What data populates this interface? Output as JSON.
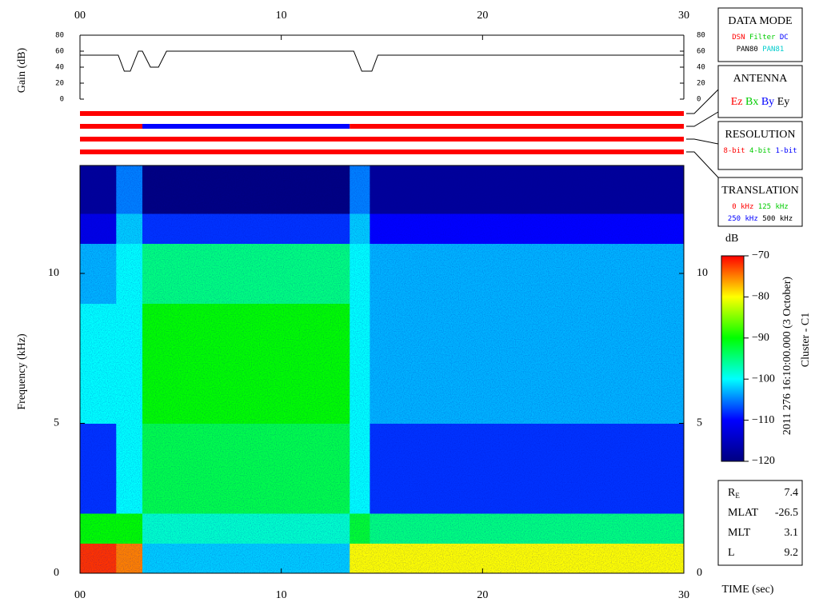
{
  "chart_data": [
    {
      "type": "line",
      "ylabel": "Gain (dB)",
      "color": "#000000",
      "x": [
        0,
        1.9,
        2.2,
        2.5,
        2.9,
        3.1,
        3.5,
        3.9,
        4.3,
        13.6,
        14.0,
        14.5,
        14.8,
        30
      ],
      "values": [
        55,
        55,
        35,
        35,
        60,
        60,
        40,
        40,
        60,
        60,
        35,
        35,
        55,
        55
      ],
      "xlim": [
        0,
        30
      ],
      "xticks": [
        {
          "value": 0,
          "label": "00"
        },
        10,
        20,
        30
      ],
      "ylim": [
        0,
        80
      ],
      "yticks": [
        0,
        20,
        40,
        60,
        80
      ]
    },
    {
      "type": "timeline",
      "xlim": [
        0,
        30
      ],
      "rows": [
        {
          "segments": [
            {
              "start": 0,
              "end": 30,
              "color": "#ff0000"
            }
          ]
        },
        {
          "segments": [
            {
              "start": 0,
              "end": 3.1,
              "color": "#ff0000"
            },
            {
              "start": 3.1,
              "end": 13.4,
              "color": "#0000ff"
            },
            {
              "start": 13.4,
              "end": 30,
              "color": "#ff0000"
            }
          ]
        },
        {
          "segments": [
            {
              "start": 0,
              "end": 30,
              "color": "#ff0000"
            }
          ]
        },
        {
          "segments": [
            {
              "start": 0,
              "end": 30,
              "color": "#ff0000"
            }
          ]
        }
      ]
    },
    {
      "type": "heatmap",
      "xlabel": "TIME (sec)",
      "ylabel": "Frequency (kHz)",
      "x_edges": [
        0,
        1.8,
        3.1,
        13.4,
        14.4,
        30
      ],
      "y_edges": [
        0,
        1,
        2,
        5,
        9,
        11,
        12,
        13.6
      ],
      "values": [
        [
          -72,
          -90,
          -108,
          -100,
          -103,
          -112,
          -118
        ],
        [
          -75,
          -90,
          -100,
          -100,
          -100,
          -102,
          -105
        ],
        [
          -102,
          -98,
          -93,
          -90,
          -95,
          -108,
          -120
        ],
        [
          -80,
          -92,
          -100,
          -100,
          -100,
          -102,
          -105
        ],
        [
          -80,
          -95,
          -108,
          -103,
          -103,
          -110,
          -118
        ]
      ],
      "xlim": [
        0,
        30
      ],
      "xticks": [
        {
          "value": 0,
          "label": "00"
        },
        10,
        20,
        30
      ],
      "ylim": [
        0,
        13.6
      ],
      "yticks": [
        0,
        5,
        10
      ],
      "zlim": [
        -120,
        -70
      ],
      "colormap": [
        "#000080",
        "#0000ff",
        "#00ffff",
        "#00ff00",
        "#ffff00",
        "#ff0000"
      ],
      "colorbar": {
        "label": "dB",
        "ticks": [
          {
            "value": -70,
            "label": "−70"
          },
          {
            "value": -80,
            "label": "−80"
          },
          {
            "value": -90,
            "label": "−90"
          },
          {
            "value": -100,
            "label": "−100"
          },
          {
            "value": -110,
            "label": "−110"
          },
          {
            "value": -120,
            "label": "−120"
          }
        ]
      }
    }
  ],
  "legend_boxes": [
    {
      "title": "DATA MODE",
      "rows": [
        [
          {
            "text": "DSN",
            "color": "#ff0000"
          },
          {
            "text": "Filter",
            "color": "#00cc00"
          },
          {
            "text": "DC",
            "color": "#0000ff"
          }
        ],
        [
          {
            "text": "PAN80",
            "color": "#000000"
          },
          {
            "text": "PAN81",
            "color": "#00cccc"
          }
        ]
      ]
    },
    {
      "title": "ANTENNA",
      "rows": [
        [
          {
            "text": "Ez",
            "color": "#ff0000"
          },
          {
            "text": "Bx",
            "color": "#00cc00"
          },
          {
            "text": "By",
            "color": "#0000ff"
          },
          {
            "text": "Ey",
            "color": "#000000"
          }
        ]
      ]
    },
    {
      "title": "RESOLUTION",
      "rows": [
        [
          {
            "text": "8-bit",
            "color": "#ff0000"
          },
          {
            "text": "4-bit",
            "color": "#00cc00"
          },
          {
            "text": "1-bit",
            "color": "#0000ff"
          }
        ]
      ]
    },
    {
      "title": "TRANSLATION",
      "rows": [
        [
          {
            "text": "0 kHz",
            "color": "#ff0000"
          },
          {
            "text": "125 kHz",
            "color": "#00cc00"
          }
        ],
        [
          {
            "text": "250 kHz",
            "color": "#0000ff"
          },
          {
            "text": "500 kHz",
            "color": "#000000"
          }
        ]
      ]
    }
  ],
  "info": [
    {
      "label": "R",
      "sub": "E",
      "value": 7.4
    },
    {
      "label": "MLAT",
      "value": -26.5
    },
    {
      "label": "MLT",
      "value": 3.1
    },
    {
      "label": "L",
      "value": 9.2
    }
  ],
  "caption": [
    "2011 276 16:10:00.000 (3 October)",
    "Cluster - C1"
  ]
}
